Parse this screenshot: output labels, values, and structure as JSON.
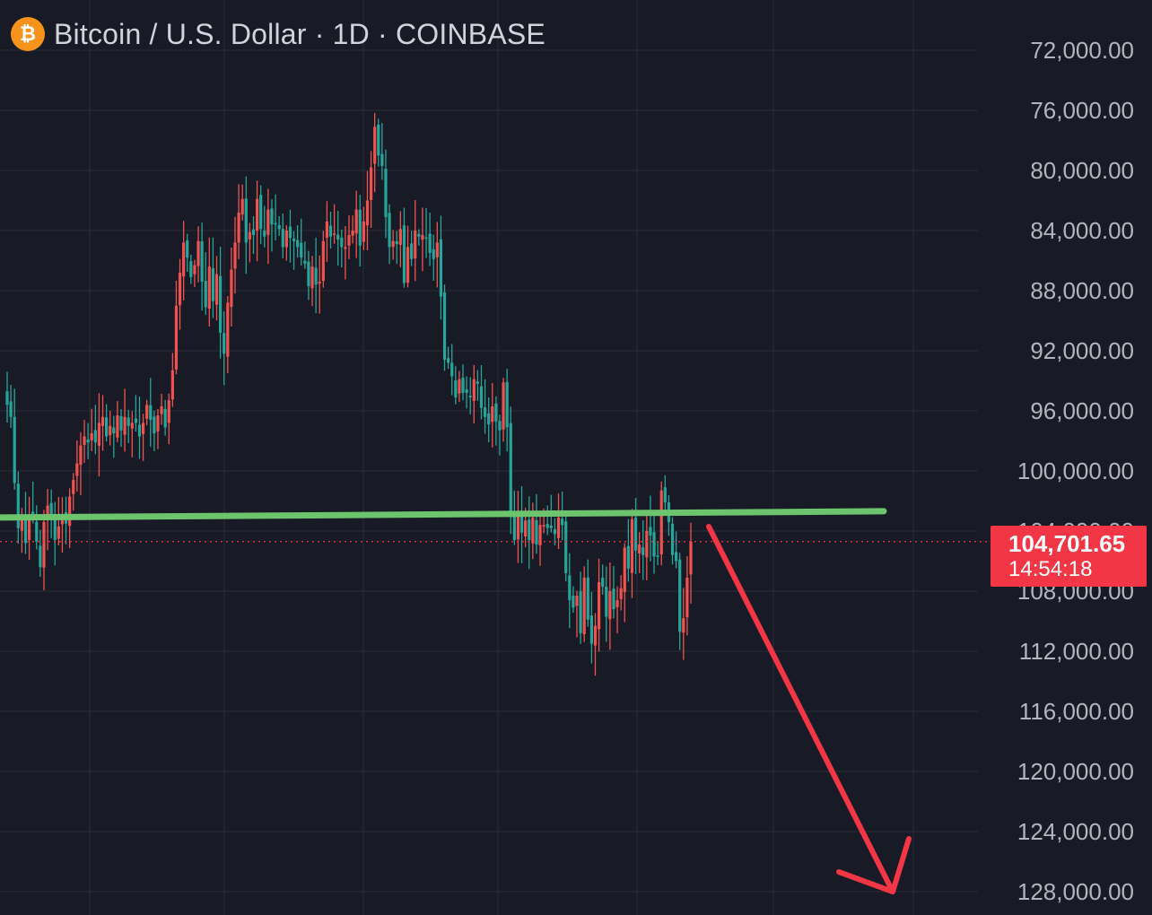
{
  "header": {
    "logo_glyph": "₿",
    "title": "Bitcoin / U.S. Dollar · 1D · COINBASE"
  },
  "price_badge": {
    "price": "104,701.65",
    "countdown": "14:54:18"
  },
  "colors": {
    "background": "#181a25",
    "grid": "#2a2e39",
    "axis_text": "#b2b5be",
    "up_candle": "#26a69a",
    "down_candle": "#ef5350",
    "support_line": "#6cc46c",
    "arrow": "#f23645",
    "badge": "#f23645",
    "logo": "#f7931a"
  },
  "chart_data": {
    "type": "candlestick",
    "title": "Bitcoin / U.S. Dollar · 1D · COINBASE",
    "timeframe": "1D",
    "exchange": "COINBASE",
    "y_axis": {
      "inverted": true,
      "ylim": [
        70000,
        129500
      ],
      "tick_labels": [
        "72,000.00",
        "76,000.00",
        "80,000.00",
        "84,000.00",
        "88,000.00",
        "92,000.00",
        "96,000.00",
        "100,000.00",
        "104,000.00",
        "108,000.00",
        "112,000.00",
        "116,000.00",
        "120,000.00",
        "124,000.00",
        "128,000.00"
      ],
      "tick_values": [
        72000,
        76000,
        80000,
        84000,
        88000,
        92000,
        96000,
        100000,
        104000,
        108000,
        112000,
        116000,
        120000,
        124000,
        128000
      ]
    },
    "grid": true,
    "last_price": 104701.65,
    "support_line": {
      "start_price": 103100,
      "end_price": 102680,
      "label": ""
    },
    "projection_arrow": {
      "direction": "down",
      "from_price": 103700,
      "to_price": 128000
    },
    "price_path_closes": [
      95600,
      96400,
      100800,
      103800,
      102900,
      104800,
      102900,
      103100,
      104700,
      106400,
      103400,
      102300,
      103200,
      104600,
      103700,
      102900,
      103500,
      101700,
      100600,
      99500,
      98300,
      97700,
      98100,
      97500,
      98100,
      96800,
      96400,
      97700,
      97000,
      97500,
      96300,
      97300,
      96400,
      97000,
      96800,
      96800,
      97700,
      96800,
      95600,
      96600,
      97500,
      96300,
      95700,
      97100,
      95300,
      93300,
      89000,
      86800,
      84800,
      85800,
      87100,
      86300,
      84700,
      87400,
      89100,
      86400,
      88700,
      86900,
      90800,
      92200,
      88800,
      86600,
      84800,
      82800,
      81900,
      84800,
      84100,
      84300,
      81900,
      83900,
      84400,
      82600,
      83600,
      83600,
      83900,
      85100,
      84000,
      84500,
      84700,
      85100,
      85800,
      86200,
      87700,
      86400,
      87600,
      87400,
      84700,
      83400,
      84400,
      84200,
      84600,
      85100,
      85100,
      84300,
      84000,
      82600,
      85000,
      83400,
      82000,
      79800,
      77100,
      79000,
      79700,
      83100,
      85100,
      84700,
      84900,
      83900,
      87500,
      85100,
      85900,
      84000,
      84400,
      84300,
      84500,
      85500,
      85900,
      84800,
      88400,
      92600,
      92800,
      93700,
      95100,
      93900,
      94800,
      94800,
      95100,
      93900,
      94200,
      95800,
      96400,
      96900,
      95700,
      96700,
      97300,
      94100,
      97100,
      103000,
      104600,
      103000,
      104100,
      103300,
      104600,
      103100,
      104900,
      103600,
      103600,
      103800,
      103800,
      104200,
      103100,
      103600,
      106800,
      108600,
      109100,
      108300,
      110800,
      107100,
      109900,
      111500,
      110300,
      107400,
      107700,
      109700,
      108000,
      109200,
      108600,
      107800,
      105100,
      106500,
      103200,
      105300,
      104900,
      105600,
      104000,
      104300,
      105700,
      105700,
      101300,
      102100,
      103400,
      105600,
      106000,
      110700,
      109800,
      107100,
      104700
    ]
  }
}
